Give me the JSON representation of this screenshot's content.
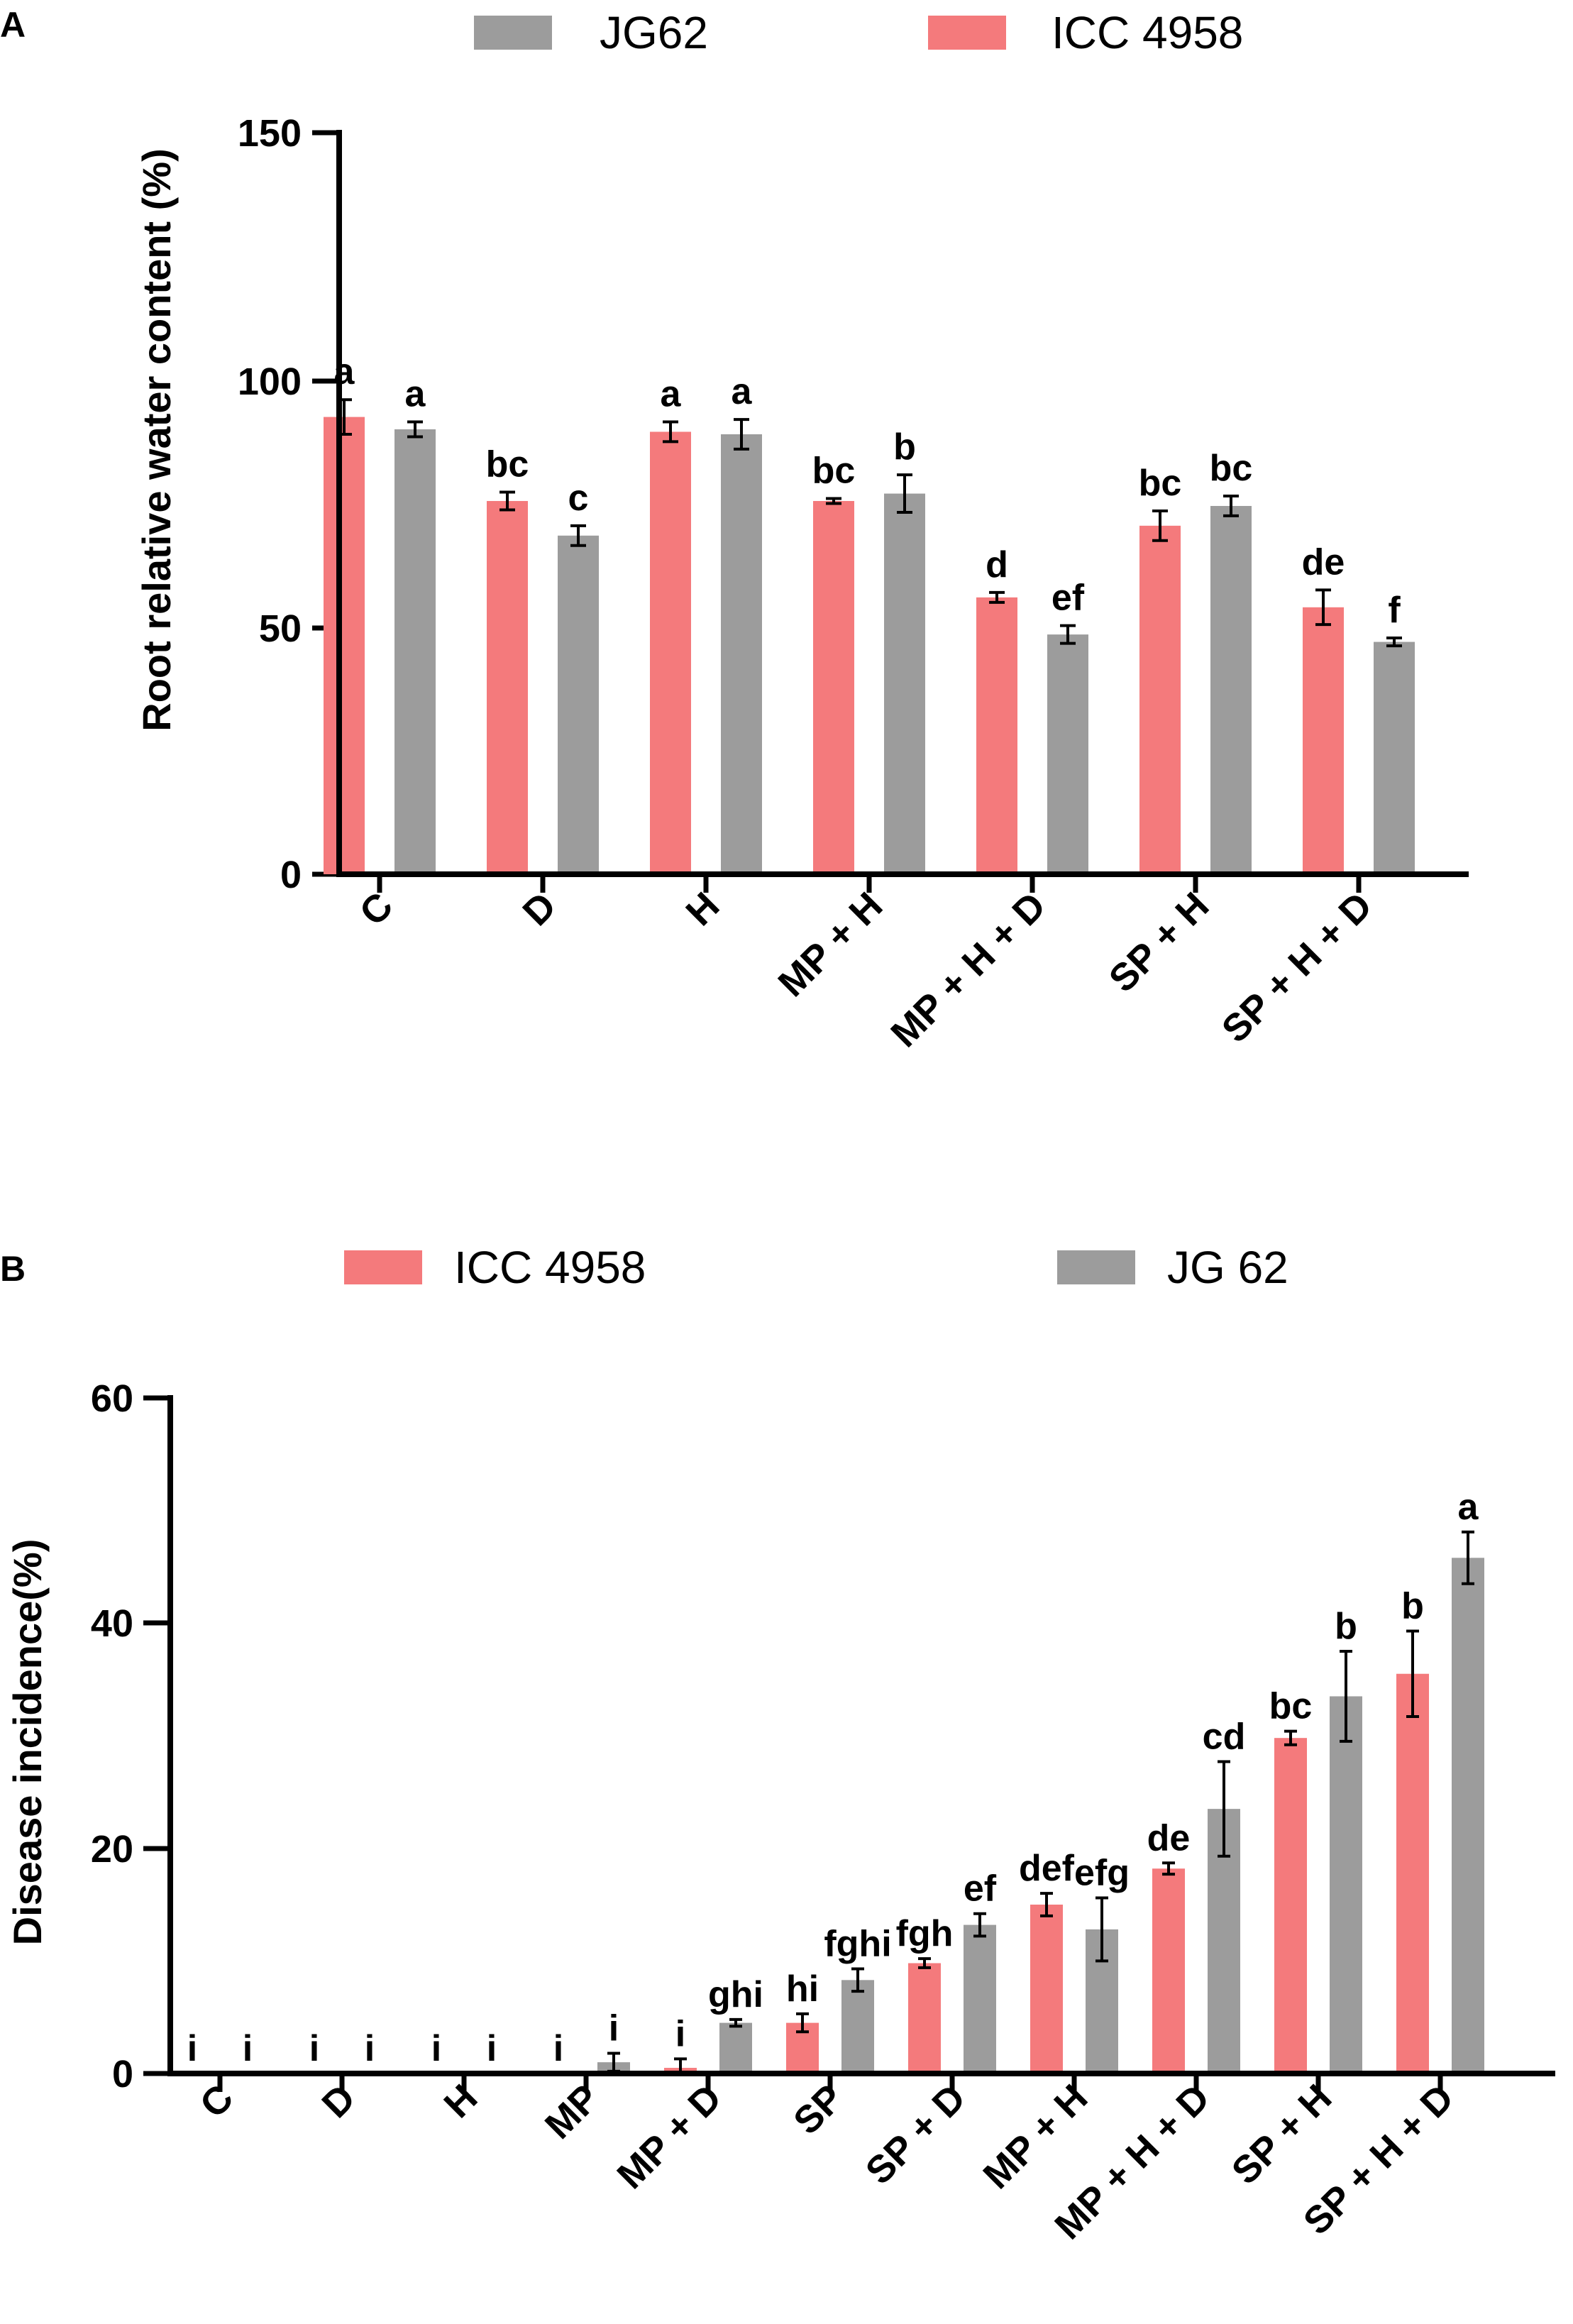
{
  "panels": [
    {
      "id": "A",
      "label": "A"
    },
    {
      "id": "B",
      "label": "B"
    }
  ],
  "colors": {
    "icc": "#f47a7c",
    "jg": "#9c9c9c"
  },
  "chart_data": [
    {
      "type": "bar",
      "panel": "A",
      "ylabel": "Root relative water content (%)",
      "ylim": [
        0,
        150
      ],
      "yticks": [
        "0",
        "50",
        "100",
        "150"
      ],
      "legend": [
        {
          "label": "JG62",
          "series": "jg"
        },
        {
          "label": "ICC 4958",
          "series": "icc"
        }
      ],
      "categories": [
        "C",
        "D",
        "H",
        "MP + H",
        "MP + H + D",
        "SP + H",
        "SP + H + D"
      ],
      "series": [
        {
          "name": "ICC 4958",
          "key": "icc",
          "values": [
            92.5,
            75.5,
            89.5,
            75.5,
            56,
            70.5,
            54
          ],
          "errors": [
            3.5,
            1.8,
            2.0,
            0.5,
            1.0,
            3.0,
            3.5
          ],
          "letters": [
            "a",
            "bc",
            "a",
            "bc",
            "d",
            "bc",
            "de"
          ]
        },
        {
          "name": "JG62",
          "key": "jg",
          "values": [
            90,
            68.5,
            89,
            77,
            48.5,
            74.5,
            47
          ],
          "errors": [
            1.5,
            2.0,
            3.0,
            3.8,
            1.8,
            2.0,
            0.8
          ],
          "letters": [
            "a",
            "c",
            "a",
            "b",
            "ef",
            "bc",
            "f"
          ]
        }
      ]
    },
    {
      "type": "bar",
      "panel": "B",
      "ylabel": "Disease incidence(%)",
      "ylim": [
        0,
        60
      ],
      "yticks": [
        "0",
        "20",
        "40",
        "60"
      ],
      "legend": [
        {
          "label": "ICC 4958",
          "series": "icc"
        },
        {
          "label": "JG 62",
          "series": "jg"
        }
      ],
      "categories": [
        "C",
        "D",
        "H",
        "MP",
        "MP + D",
        "SP",
        "SP + D",
        "MP + H",
        "MP + H + D",
        "SP + H",
        "SP + H + D"
      ],
      "series": [
        {
          "name": "ICC 4958",
          "key": "icc",
          "values": [
            0,
            0,
            0,
            0,
            0.5,
            4.5,
            9.8,
            15,
            18.2,
            29.8,
            35.5
          ],
          "errors": [
            0,
            0,
            0,
            0,
            0.8,
            0.8,
            0.4,
            1.0,
            0.5,
            0.6,
            3.8
          ],
          "letters": [
            "i",
            "i",
            "i",
            "i",
            "i",
            "hi",
            "fgh",
            "def",
            "de",
            "bc",
            "b"
          ]
        },
        {
          "name": "JG 62",
          "key": "jg",
          "values": [
            0,
            0,
            0,
            1.0,
            4.5,
            8.3,
            13.2,
            12.8,
            23.5,
            33.5,
            45.8
          ],
          "errors": [
            0,
            0,
            0,
            0.8,
            0.3,
            1.0,
            1.0,
            2.8,
            4.2,
            4.0,
            2.3
          ],
          "letters": [
            "i",
            "i",
            "i",
            "i",
            "ghi",
            "fghi",
            "ef",
            "efg",
            "cd",
            "b",
            "a"
          ]
        }
      ]
    }
  ]
}
